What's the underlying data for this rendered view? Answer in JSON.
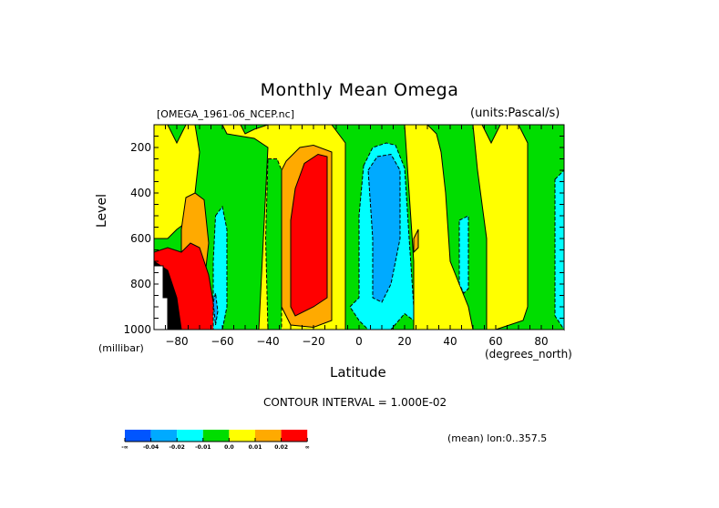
{
  "chart_data": {
    "type": "heatmap",
    "subtype": "filled-contour",
    "title": "Monthly Mean Omega",
    "file_label": "[OMEGA_1961-06_NCEP.nc]",
    "units_label": "(units:Pascal/s)",
    "xlabel": "Latitude",
    "xunits": "(degrees_north)",
    "ylabel": "Level",
    "yunits": "(millibar)",
    "xlim": [
      -90,
      90
    ],
    "ylim": [
      1000,
      100
    ],
    "xticks": [
      -80,
      -60,
      -40,
      -20,
      0,
      20,
      40,
      60,
      80
    ],
    "yticks": [
      200,
      400,
      600,
      800,
      1000
    ],
    "contour_interval_text": "CONTOUR INTERVAL = 1.000E-02",
    "footer_text": "(mean) lon:0..357.5",
    "colorbar": {
      "colors": [
        "#0055ff",
        "#00aaff",
        "#00ffff",
        "#00dd00",
        "#ffff00",
        "#ffaa00",
        "#ff0000"
      ],
      "labels": [
        "-∞",
        "-0.04",
        "-0.02",
        "-0.01",
        "0.0",
        "0.01",
        "0.02",
        "∞"
      ]
    },
    "background_level_color": "#00dd00",
    "regions": [
      {
        "level": "0.0..0.01",
        "color": "#ffff00",
        "pts": [
          [
            -90,
            100
          ],
          [
            -84,
            100
          ],
          [
            -80,
            180
          ],
          [
            -76,
            100
          ],
          [
            -72,
            100
          ],
          [
            -70,
            220
          ],
          [
            -72,
            400
          ],
          [
            -72,
            500
          ],
          [
            -80,
            560
          ],
          [
            -84,
            600
          ],
          [
            -90,
            600
          ]
        ]
      },
      {
        "level": "0.01..0.02",
        "color": "#ffaa00",
        "pts": [
          [
            -78,
            560
          ],
          [
            -76,
            420
          ],
          [
            -72,
            400
          ],
          [
            -68,
            430
          ],
          [
            -66,
            620
          ],
          [
            -68,
            800
          ],
          [
            -74,
            800
          ],
          [
            -78,
            700
          ]
        ]
      },
      {
        "level": "0.02+",
        "color": "#ff0000",
        "pts": [
          [
            -90,
            660
          ],
          [
            -84,
            640
          ],
          [
            -78,
            660
          ],
          [
            -74,
            620
          ],
          [
            -70,
            640
          ],
          [
            -66,
            760
          ],
          [
            -62,
            1000
          ],
          [
            -90,
            1000
          ]
        ]
      },
      {
        "level": "below-ground",
        "color": "#000000",
        "pts": [
          [
            -90,
            700
          ],
          [
            -84,
            740
          ],
          [
            -80,
            860
          ],
          [
            -78,
            1000
          ],
          [
            -90,
            1000
          ]
        ]
      },
      {
        "level": "missing",
        "color": "#ffffff",
        "pts": [
          [
            -90,
            720
          ],
          [
            -86,
            720
          ],
          [
            -86,
            860
          ],
          [
            -84,
            860
          ],
          [
            -84,
            1000
          ],
          [
            -90,
            1000
          ]
        ]
      },
      {
        "level": "-0.01..-0.02",
        "color": "#00ffff",
        "pts": [
          [
            -63,
            500
          ],
          [
            -60,
            460
          ],
          [
            -58,
            560
          ],
          [
            -58,
            900
          ],
          [
            -60,
            1000
          ],
          [
            -64,
            1000
          ],
          [
            -64,
            700
          ]
        ]
      },
      {
        "level": "-0.02..-0.04",
        "color": "#00aaff",
        "pts": [
          [
            -64,
            880
          ],
          [
            -63,
            840
          ],
          [
            -62,
            920
          ],
          [
            -63,
            980
          ]
        ]
      },
      {
        "level": "0.0..0.01",
        "color": "#ffff00",
        "pts": [
          [
            -60,
            100
          ],
          [
            -52,
            100
          ],
          [
            -50,
            140
          ],
          [
            -46,
            120
          ],
          [
            -40,
            100
          ],
          [
            -20,
            100
          ],
          [
            -12,
            100
          ],
          [
            -6,
            180
          ],
          [
            -6,
            1000
          ],
          [
            -44,
            1000
          ],
          [
            -42,
            600
          ],
          [
            -40,
            200
          ],
          [
            -46,
            160
          ],
          [
            -58,
            140
          ]
        ]
      },
      {
        "level": "-0.01..0",
        "color": "#00dd00",
        "pts": [
          [
            -40,
            250
          ],
          [
            -36,
            250
          ],
          [
            -34,
            300
          ],
          [
            -34,
            1000
          ],
          [
            -40,
            1000
          ],
          [
            -41,
            600
          ]
        ]
      },
      {
        "level": "0.01..0.02",
        "color": "#ffaa00",
        "pts": [
          [
            -32,
            260
          ],
          [
            -26,
            200
          ],
          [
            -20,
            190
          ],
          [
            -12,
            220
          ],
          [
            -12,
            960
          ],
          [
            -20,
            990
          ],
          [
            -30,
            980
          ],
          [
            -34,
            900
          ],
          [
            -34,
            300
          ]
        ]
      },
      {
        "level": "0.02+",
        "color": "#ff0000",
        "pts": [
          [
            -28,
            380
          ],
          [
            -24,
            270
          ],
          [
            -18,
            230
          ],
          [
            -14,
            240
          ],
          [
            -14,
            860
          ],
          [
            -20,
            900
          ],
          [
            -28,
            940
          ],
          [
            -30,
            900
          ],
          [
            -30,
            520
          ]
        ]
      },
      {
        "level": "-0.01..-0.02",
        "color": "#00ffff",
        "pts": [
          [
            2,
            280
          ],
          [
            6,
            200
          ],
          [
            12,
            180
          ],
          [
            16,
            190
          ],
          [
            20,
            290
          ],
          [
            22,
            600
          ],
          [
            24,
            900
          ],
          [
            24,
            960
          ],
          [
            20,
            930
          ],
          [
            14,
            1000
          ],
          [
            4,
            1000
          ],
          [
            0,
            960
          ],
          [
            -4,
            900
          ],
          [
            0,
            860
          ],
          [
            0,
            500
          ]
        ]
      },
      {
        "level": "-0.02..-0.04",
        "color": "#00aaff",
        "pts": [
          [
            4,
            300
          ],
          [
            8,
            240
          ],
          [
            14,
            230
          ],
          [
            18,
            300
          ],
          [
            18,
            600
          ],
          [
            14,
            800
          ],
          [
            10,
            880
          ],
          [
            6,
            860
          ],
          [
            6,
            600
          ]
        ]
      },
      {
        "level": "0.0..0.01",
        "color": "#ffff00",
        "pts": [
          [
            20,
            100
          ],
          [
            30,
            100
          ],
          [
            34,
            140
          ],
          [
            36,
            220
          ],
          [
            38,
            400
          ],
          [
            40,
            700
          ],
          [
            48,
            900
          ],
          [
            50,
            1000
          ],
          [
            24,
            1000
          ],
          [
            24,
            700
          ],
          [
            22,
            400
          ]
        ]
      },
      {
        "level": "0.01..0.02",
        "color": "#ffaa00",
        "pts": [
          [
            24,
            600
          ],
          [
            26,
            560
          ],
          [
            26,
            640
          ],
          [
            24,
            660
          ]
        ]
      },
      {
        "level": "0.0..0.01",
        "color": "#ffff00",
        "pts": [
          [
            50,
            100
          ],
          [
            54,
            100
          ],
          [
            58,
            180
          ],
          [
            62,
            100
          ],
          [
            70,
            100
          ],
          [
            74,
            180
          ],
          [
            74,
            900
          ],
          [
            72,
            960
          ],
          [
            60,
            1000
          ],
          [
            56,
            1000
          ],
          [
            56,
            600
          ],
          [
            52,
            300
          ]
        ]
      },
      {
        "level": "-0.01..-0.02",
        "color": "#00ffff",
        "pts": [
          [
            44,
            520
          ],
          [
            48,
            500
          ],
          [
            48,
            820
          ],
          [
            46,
            840
          ],
          [
            44,
            800
          ]
        ]
      },
      {
        "level": "-0.01..-0.02",
        "color": "#00ffff",
        "pts": [
          [
            86,
            340
          ],
          [
            90,
            300
          ],
          [
            90,
            1000
          ],
          [
            86,
            940
          ]
        ]
      }
    ]
  }
}
